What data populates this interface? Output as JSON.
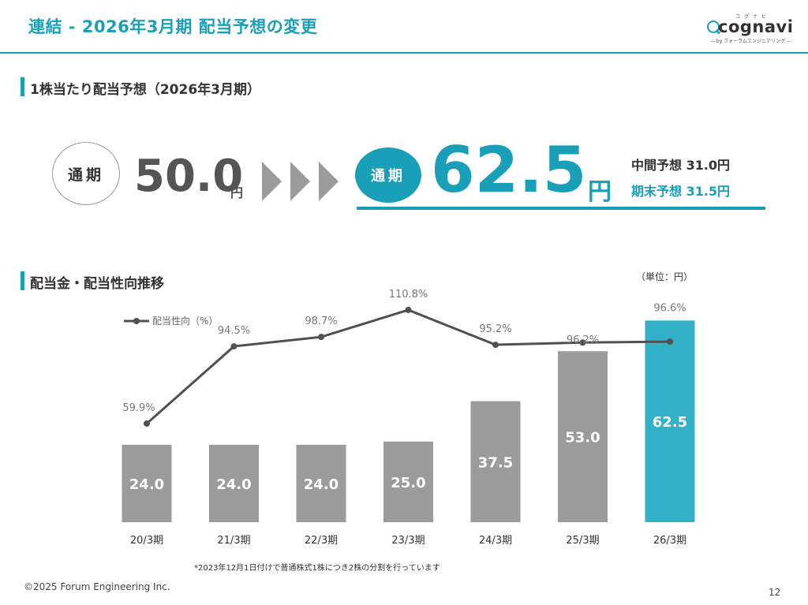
{
  "header": {
    "title": "連結 - 2026年3月期 配当予想の変更"
  },
  "logo": {
    "ruby": "コグナビ",
    "word": "cognavi",
    "sub": "— by フォーラムエンジニアリング —"
  },
  "section1": {
    "title": "1株当たり配当予想（2026年3月期）"
  },
  "forecast": {
    "before_label": "通期",
    "before_value": "50.0",
    "before_unit": "円",
    "after_label": "通期",
    "after_value": "62.5",
    "after_unit": "円",
    "interim": "中間予想 31.0円",
    "year_end": "期末予想 31.5円"
  },
  "section2": {
    "title": "配当金・配当性向推移",
    "unit": "（単位：円）"
  },
  "chart_data": {
    "type": "bar",
    "categories": [
      "20/3期",
      "21/3期",
      "22/3期",
      "23/3期",
      "24/3期",
      "25/3期",
      "26/3期"
    ],
    "series": [
      {
        "values": [
          24.0,
          24.0,
          24.0,
          25.0,
          37.5,
          53.0,
          62.5
        ],
        "labels": [
          "24.0",
          "24.0",
          "24.0",
          "25.0",
          "37.5",
          "53.0",
          "62.5"
        ],
        "colors": [
          "#9b9b9b",
          "#9b9b9b",
          "#9b9b9b",
          "#9b9b9b",
          "#9b9b9b",
          "#9b9b9b",
          "#33b1c9"
        ]
      },
      {
        "name": "配当性向（%）",
        "type": "line",
        "values": [
          59.9,
          94.5,
          98.7,
          110.8,
          95.2,
          96.2,
          96.6
        ],
        "labels": [
          "59.9%",
          "94.5%",
          "98.7%",
          "110.8%",
          "95.2%",
          "96.2%",
          "96.6%"
        ],
        "color": "#505050"
      }
    ]
  },
  "note": "*2023年12月1日付けで普通株式1株につき2株の分割を行っています",
  "footer": {
    "copyright": "©2025 Forum Engineering Inc.",
    "page": "12"
  }
}
